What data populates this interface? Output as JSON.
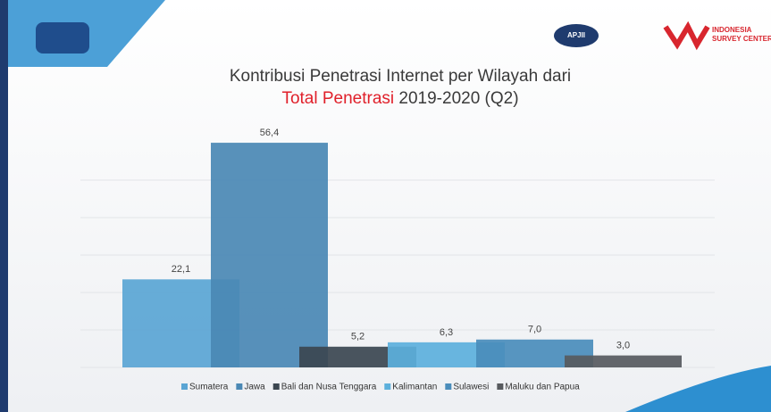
{
  "logos": [
    "APJII",
    "INDONESIA",
    "SURVEY CENTER"
  ],
  "chart_data": {
    "type": "bar",
    "title": "Kontribusi Penetrasi Internet per Wilayah dari",
    "subtitle": {
      "highlight": "Total Penetrasi",
      "rest": "2019-2020 (Q2)"
    },
    "categories": [
      "Sumatera",
      "Jawa",
      "Bali dan Nusa Tenggara",
      "Kalimantan",
      "Sulawesi",
      "Maluku dan Papua"
    ],
    "values": [
      22.1,
      56.4,
      5.2,
      6.3,
      7.0,
      3.0
    ],
    "value_labels": [
      "22,1",
      "56,4",
      "5,2",
      "6,3",
      "7,0",
      "3,0"
    ],
    "colors": [
      "#5aa5d4",
      "#4a88b4",
      "#3b4650",
      "#5cb0dc",
      "#4a8dbb",
      "#575a5e"
    ],
    "ylim": [
      0,
      60
    ]
  }
}
